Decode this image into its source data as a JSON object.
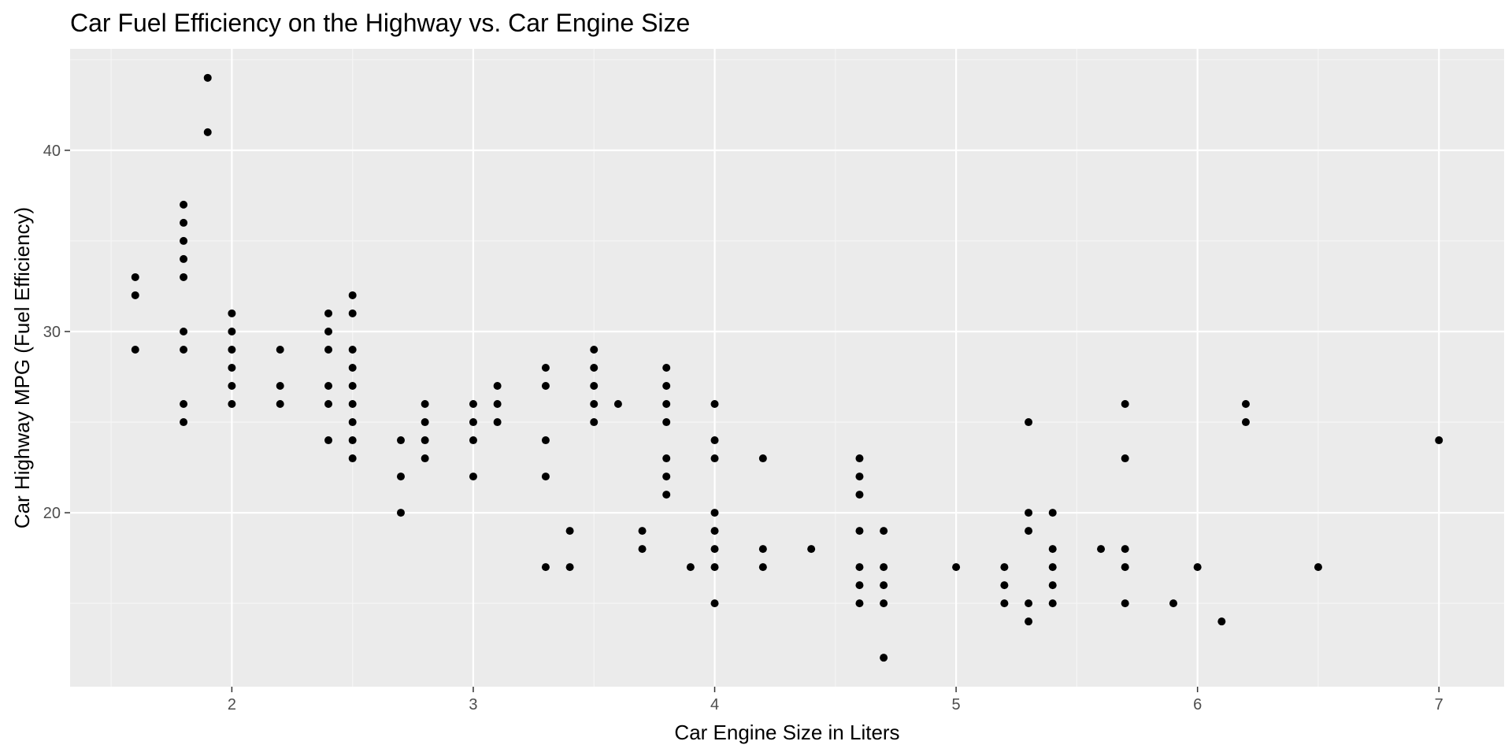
{
  "colors": {
    "panel_background": "#ebebeb",
    "grid_major": "#ffffff",
    "grid_minor": "#f5f5f5",
    "tick_color": "#333333",
    "point_color": "#000000"
  },
  "chart_data": {
    "type": "scatter",
    "title": "Car Fuel Efficiency on the Highway vs. Car Engine Size",
    "xlabel": "Car Engine Size in Liters",
    "ylabel": "Car Highway MPG (Fuel Efficiency)",
    "xlim": [
      1.33,
      7.27
    ],
    "ylim": [
      10.4,
      45.6
    ],
    "x_ticks": [
      2,
      3,
      4,
      5,
      6,
      7
    ],
    "y_ticks": [
      20,
      30,
      40
    ],
    "grid": true,
    "legend": "none",
    "points": [
      [
        1.6,
        33
      ],
      [
        1.6,
        32
      ],
      [
        1.6,
        29
      ],
      [
        1.8,
        37
      ],
      [
        1.8,
        36
      ],
      [
        1.8,
        35
      ],
      [
        1.8,
        34
      ],
      [
        1.8,
        33
      ],
      [
        1.8,
        30
      ],
      [
        1.8,
        29
      ],
      [
        1.8,
        26
      ],
      [
        1.8,
        25
      ],
      [
        1.9,
        44
      ],
      [
        1.9,
        41
      ],
      [
        2.0,
        31
      ],
      [
        2.0,
        30
      ],
      [
        2.0,
        29
      ],
      [
        2.0,
        28
      ],
      [
        2.0,
        27
      ],
      [
        2.0,
        26
      ],
      [
        2.2,
        29
      ],
      [
        2.2,
        27
      ],
      [
        2.2,
        26
      ],
      [
        2.4,
        31
      ],
      [
        2.4,
        30
      ],
      [
        2.4,
        29
      ],
      [
        2.4,
        27
      ],
      [
        2.4,
        26
      ],
      [
        2.4,
        24
      ],
      [
        2.5,
        32
      ],
      [
        2.5,
        31
      ],
      [
        2.5,
        29
      ],
      [
        2.5,
        28
      ],
      [
        2.5,
        27
      ],
      [
        2.5,
        26
      ],
      [
        2.5,
        25
      ],
      [
        2.5,
        24
      ],
      [
        2.5,
        23
      ],
      [
        2.7,
        24
      ],
      [
        2.7,
        22
      ],
      [
        2.7,
        20
      ],
      [
        2.8,
        26
      ],
      [
        2.8,
        25
      ],
      [
        2.8,
        24
      ],
      [
        2.8,
        23
      ],
      [
        3.0,
        26
      ],
      [
        3.0,
        25
      ],
      [
        3.0,
        24
      ],
      [
        3.0,
        22
      ],
      [
        3.1,
        27
      ],
      [
        3.1,
        26
      ],
      [
        3.1,
        25
      ],
      [
        3.3,
        28
      ],
      [
        3.3,
        27
      ],
      [
        3.3,
        24
      ],
      [
        3.3,
        22
      ],
      [
        3.3,
        17
      ],
      [
        3.4,
        19
      ],
      [
        3.4,
        17
      ],
      [
        3.5,
        29
      ],
      [
        3.5,
        28
      ],
      [
        3.5,
        27
      ],
      [
        3.5,
        26
      ],
      [
        3.5,
        25
      ],
      [
        3.6,
        26
      ],
      [
        3.7,
        19
      ],
      [
        3.7,
        18
      ],
      [
        3.8,
        28
      ],
      [
        3.8,
        27
      ],
      [
        3.8,
        26
      ],
      [
        3.8,
        25
      ],
      [
        3.8,
        23
      ],
      [
        3.8,
        22
      ],
      [
        3.8,
        21
      ],
      [
        3.9,
        17
      ],
      [
        4.0,
        26
      ],
      [
        4.0,
        24
      ],
      [
        4.0,
        23
      ],
      [
        4.0,
        20
      ],
      [
        4.0,
        19
      ],
      [
        4.0,
        18
      ],
      [
        4.0,
        17
      ],
      [
        4.0,
        15
      ],
      [
        4.2,
        23
      ],
      [
        4.2,
        18
      ],
      [
        4.2,
        17
      ],
      [
        4.4,
        18
      ],
      [
        4.6,
        23
      ],
      [
        4.6,
        22
      ],
      [
        4.6,
        21
      ],
      [
        4.6,
        19
      ],
      [
        4.6,
        17
      ],
      [
        4.6,
        16
      ],
      [
        4.6,
        15
      ],
      [
        4.7,
        19
      ],
      [
        4.7,
        17
      ],
      [
        4.7,
        16
      ],
      [
        4.7,
        15
      ],
      [
        4.7,
        12
      ],
      [
        5.0,
        17
      ],
      [
        5.2,
        17
      ],
      [
        5.2,
        16
      ],
      [
        5.2,
        15
      ],
      [
        5.3,
        25
      ],
      [
        5.3,
        20
      ],
      [
        5.3,
        19
      ],
      [
        5.3,
        15
      ],
      [
        5.3,
        14
      ],
      [
        5.4,
        20
      ],
      [
        5.4,
        18
      ],
      [
        5.4,
        17
      ],
      [
        5.4,
        16
      ],
      [
        5.4,
        15
      ],
      [
        5.6,
        18
      ],
      [
        5.7,
        26
      ],
      [
        5.7,
        23
      ],
      [
        5.7,
        18
      ],
      [
        5.7,
        17
      ],
      [
        5.7,
        15
      ],
      [
        5.9,
        15
      ],
      [
        6.0,
        17
      ],
      [
        6.1,
        14
      ],
      [
        6.2,
        26
      ],
      [
        6.2,
        25
      ],
      [
        6.5,
        17
      ],
      [
        7.0,
        24
      ]
    ]
  }
}
